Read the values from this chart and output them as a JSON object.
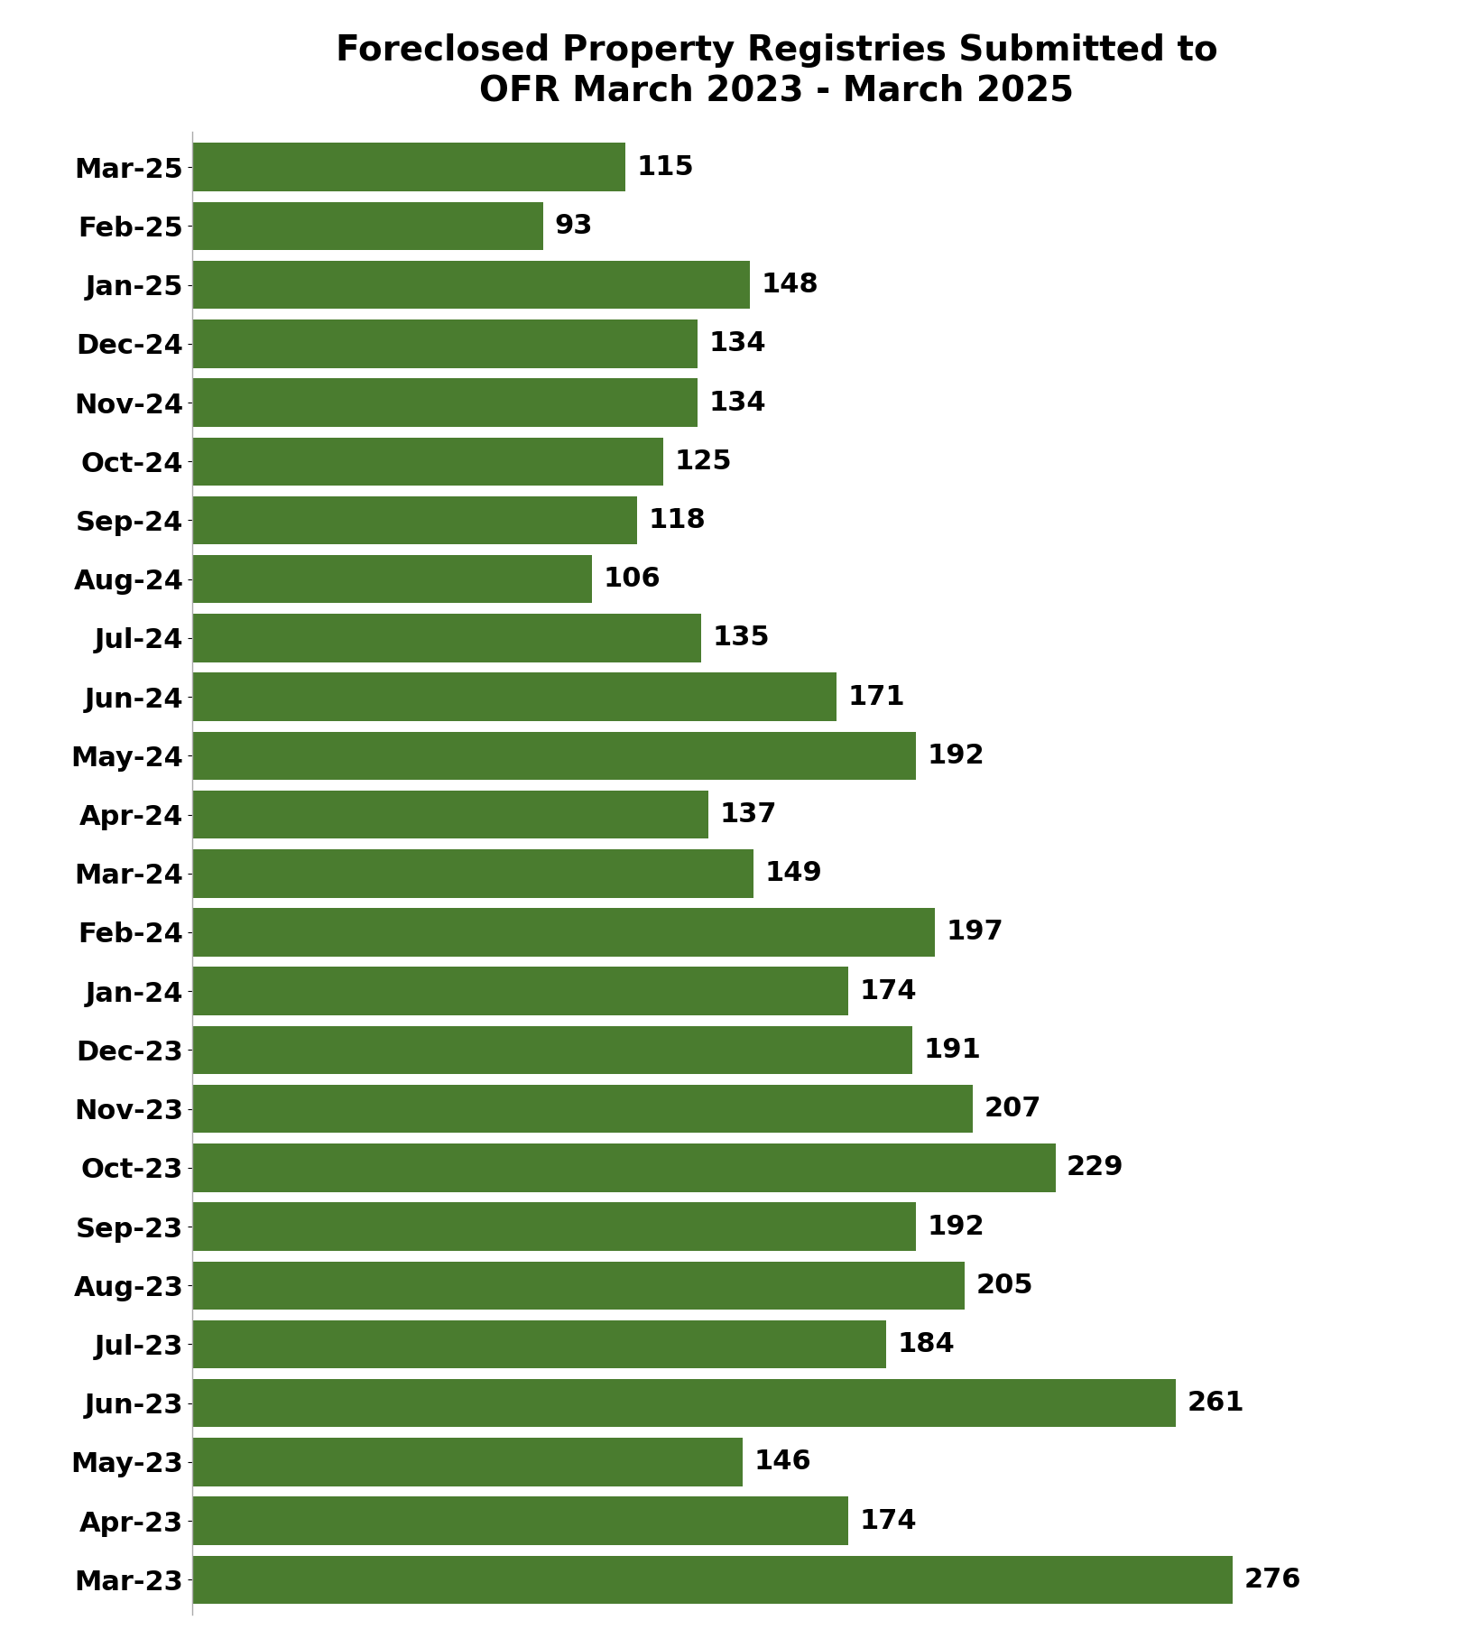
{
  "title": "Foreclosed Property Registries Submitted to\nOFR March 2023 - March 2025",
  "categories": [
    "Mar-25",
    "Feb-25",
    "Jan-25",
    "Dec-24",
    "Nov-24",
    "Oct-24",
    "Sep-24",
    "Aug-24",
    "Jul-24",
    "Jun-24",
    "May-24",
    "Apr-24",
    "Mar-24",
    "Feb-24",
    "Jan-24",
    "Dec-23",
    "Nov-23",
    "Oct-23",
    "Sep-23",
    "Aug-23",
    "Jul-23",
    "Jun-23",
    "May-23",
    "Apr-23",
    "Mar-23"
  ],
  "values": [
    115,
    93,
    148,
    134,
    134,
    125,
    118,
    106,
    135,
    171,
    192,
    137,
    149,
    197,
    174,
    191,
    207,
    229,
    192,
    205,
    184,
    261,
    146,
    174,
    276
  ],
  "bar_color": "#4a7c2f",
  "background_color": "#ffffff",
  "title_fontsize": 28,
  "label_fontsize": 22,
  "value_fontsize": 22,
  "xlim": [
    0,
    310
  ],
  "bar_height": 0.82
}
